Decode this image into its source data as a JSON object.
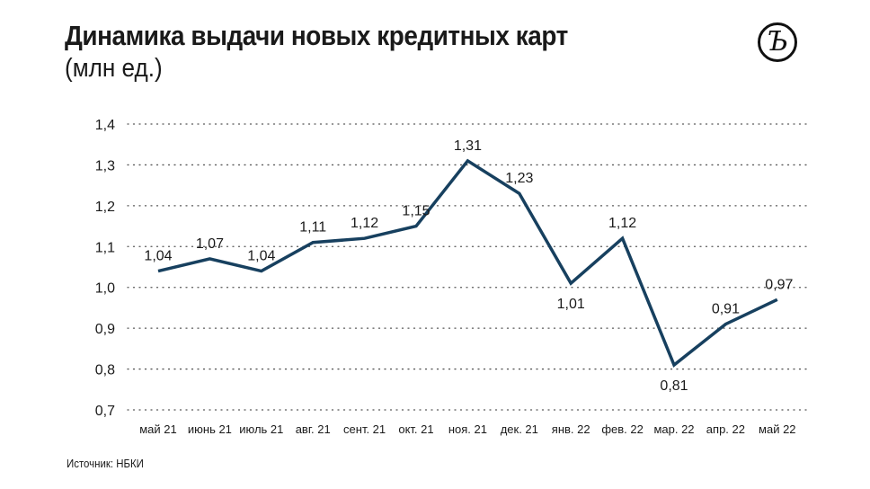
{
  "title": "Динамика выдачи новых кредитных карт",
  "subtitle": "(млн ед.)",
  "source": "Источник: НБКИ",
  "logo_text": "Ъ",
  "colors": {
    "line": "#17405f",
    "grid": "#555555",
    "text": "#1a1a1a"
  },
  "chart_data": {
    "type": "line",
    "title": "Динамика выдачи новых кредитных карт",
    "ylabel": "млн ед.",
    "xlabel": "",
    "ylim": [
      0.7,
      1.4
    ],
    "yticks": [
      "0,7",
      "0,8",
      "0,9",
      "1,0",
      "1,1",
      "1,2",
      "1,3",
      "1,4"
    ],
    "ytick_values": [
      0.7,
      0.8,
      0.9,
      1.0,
      1.1,
      1.2,
      1.3,
      1.4
    ],
    "grid": "dotted horizontal",
    "categories": [
      "май 21",
      "июнь 21",
      "июль 21",
      "авг. 21",
      "сент. 21",
      "окт. 21",
      "ноя. 21",
      "дек. 21",
      "янв. 22",
      "фев. 22",
      "мар. 22",
      "апр. 22",
      "май 22"
    ],
    "values": [
      1.04,
      1.07,
      1.04,
      1.11,
      1.12,
      1.15,
      1.31,
      1.23,
      1.01,
      1.12,
      0.81,
      0.91,
      0.97
    ],
    "labels": [
      "1,04",
      "1,07",
      "1,04",
      "1,11",
      "1,12",
      "1,15",
      "1,31",
      "1,23",
      "1,01",
      "1,12",
      "0,81",
      "0,91",
      "0,97"
    ],
    "label_pos": [
      "above",
      "above",
      "above",
      "above",
      "above",
      "above",
      "above",
      "above",
      "below",
      "above",
      "below",
      "above",
      "above"
    ]
  }
}
